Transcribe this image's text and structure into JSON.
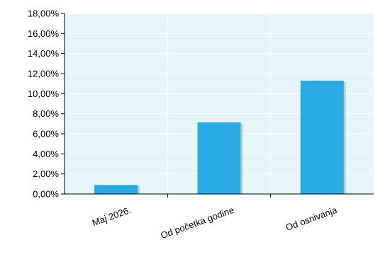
{
  "chart_data": {
    "type": "bar",
    "title": "",
    "xlabel": "",
    "ylabel": "",
    "categories": [
      "Maj 2026.",
      "Od početka godine",
      "Od osnivanja"
    ],
    "series": [
      {
        "values": [
          0.9,
          7.15,
          11.3
        ]
      }
    ],
    "ylim": [
      0,
      18
    ],
    "y_ticks": [
      "0,00%",
      "2,00%",
      "4,00%",
      "6,00%",
      "8,00%",
      "10,00%",
      "12,00%",
      "14,00%",
      "16,00%",
      "18,00%"
    ],
    "grid": true,
    "legend": "none",
    "colors": {
      "bar": "#2aaae2",
      "plot_background": "#e6f4fb",
      "grid": "#ffffff",
      "axis": "#000000"
    }
  }
}
